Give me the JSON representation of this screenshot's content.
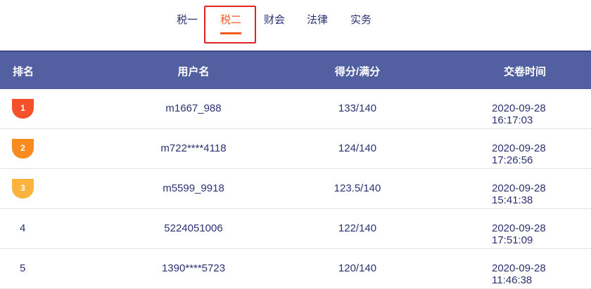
{
  "tabs": [
    {
      "label": "税一"
    },
    {
      "label": "税二",
      "active": true
    },
    {
      "label": "财会"
    },
    {
      "label": "法律"
    },
    {
      "label": "实务"
    }
  ],
  "colors": {
    "accent": "#f25a1f",
    "header_bg": "#525fa0",
    "highlight_box": "#e02424",
    "text": "#2b3272",
    "medal_1": "#f4512a",
    "medal_2": "#f98a1f",
    "medal_3": "#fbb33e"
  },
  "table": {
    "headers": [
      "排名",
      "用户名",
      "得分/满分",
      "交卷时间"
    ],
    "rows": [
      {
        "rank": "1",
        "medal": true,
        "user": "m1667_988",
        "score": "133/140",
        "time": "2020-09-28 16:17:03"
      },
      {
        "rank": "2",
        "medal": true,
        "user": "m722****4118",
        "score": "124/140",
        "time": "2020-09-28 17:26:56"
      },
      {
        "rank": "3",
        "medal": true,
        "user": "m5599_9918",
        "score": "123.5/140",
        "time": "2020-09-28 15:41:38"
      },
      {
        "rank": "4",
        "medal": false,
        "user": "5224051006",
        "score": "122/140",
        "time": "2020-09-28 17:51:09"
      },
      {
        "rank": "5",
        "medal": false,
        "user": "1390****5723",
        "score": "120/140",
        "time": "2020-09-28 11:46:38"
      }
    ]
  }
}
